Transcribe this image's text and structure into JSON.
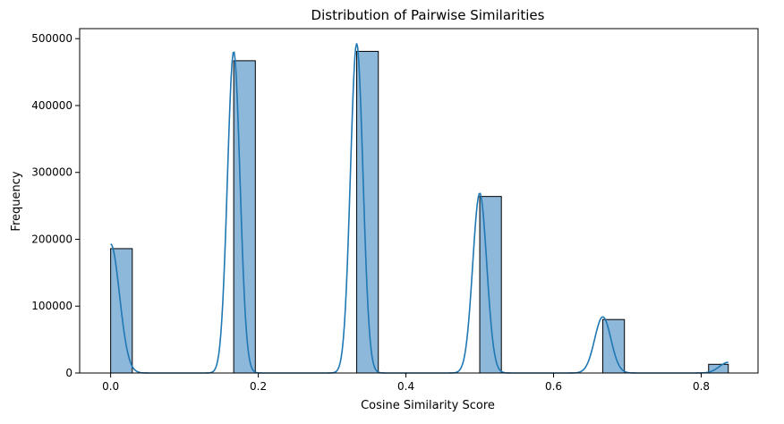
{
  "chart_data": {
    "type": "bar",
    "title": "Distribution of Pairwise Similarities",
    "xlabel": "Cosine Similarity Score",
    "ylabel": "Frequency",
    "xlim": [
      -0.042,
      0.877
    ],
    "ylim": [
      0,
      515000
    ],
    "xticks": [
      0.0,
      0.2,
      0.4,
      0.6,
      0.8
    ],
    "xtick_labels": [
      "0.0",
      "0.2",
      "0.4",
      "0.6",
      "0.8"
    ],
    "yticks": [
      0,
      100000,
      200000,
      300000,
      400000,
      500000
    ],
    "ytick_labels": [
      "0",
      "100000",
      "200000",
      "300000",
      "400000",
      "500000"
    ],
    "grid": false,
    "bins": [
      {
        "x0": 0.0,
        "x1": 0.0293,
        "count": 186000
      },
      {
        "x0": 0.1667,
        "x1": 0.196,
        "count": 467000
      },
      {
        "x0": 0.3333,
        "x1": 0.3626,
        "count": 481000
      },
      {
        "x0": 0.5,
        "x1": 0.5293,
        "count": 264000
      },
      {
        "x0": 0.6667,
        "x1": 0.696,
        "count": 80000
      },
      {
        "x0": 0.81,
        "x1": 0.8367,
        "count": 13000
      }
    ],
    "kde_peaks": [
      {
        "center": 0.0,
        "height": 193000,
        "width": 0.012
      },
      {
        "center": 0.1667,
        "height": 481000,
        "width": 0.0085
      },
      {
        "center": 0.3333,
        "height": 493000,
        "width": 0.0085
      },
      {
        "center": 0.5,
        "height": 269000,
        "width": 0.0095
      },
      {
        "center": 0.6667,
        "height": 84000,
        "width": 0.011
      },
      {
        "center": 0.8367,
        "height": 16000,
        "width": 0.012
      }
    ],
    "colors": {
      "bar_fill": "#8db8da",
      "bar_edge": "#000000",
      "kde_line": "#1f77b4"
    }
  }
}
